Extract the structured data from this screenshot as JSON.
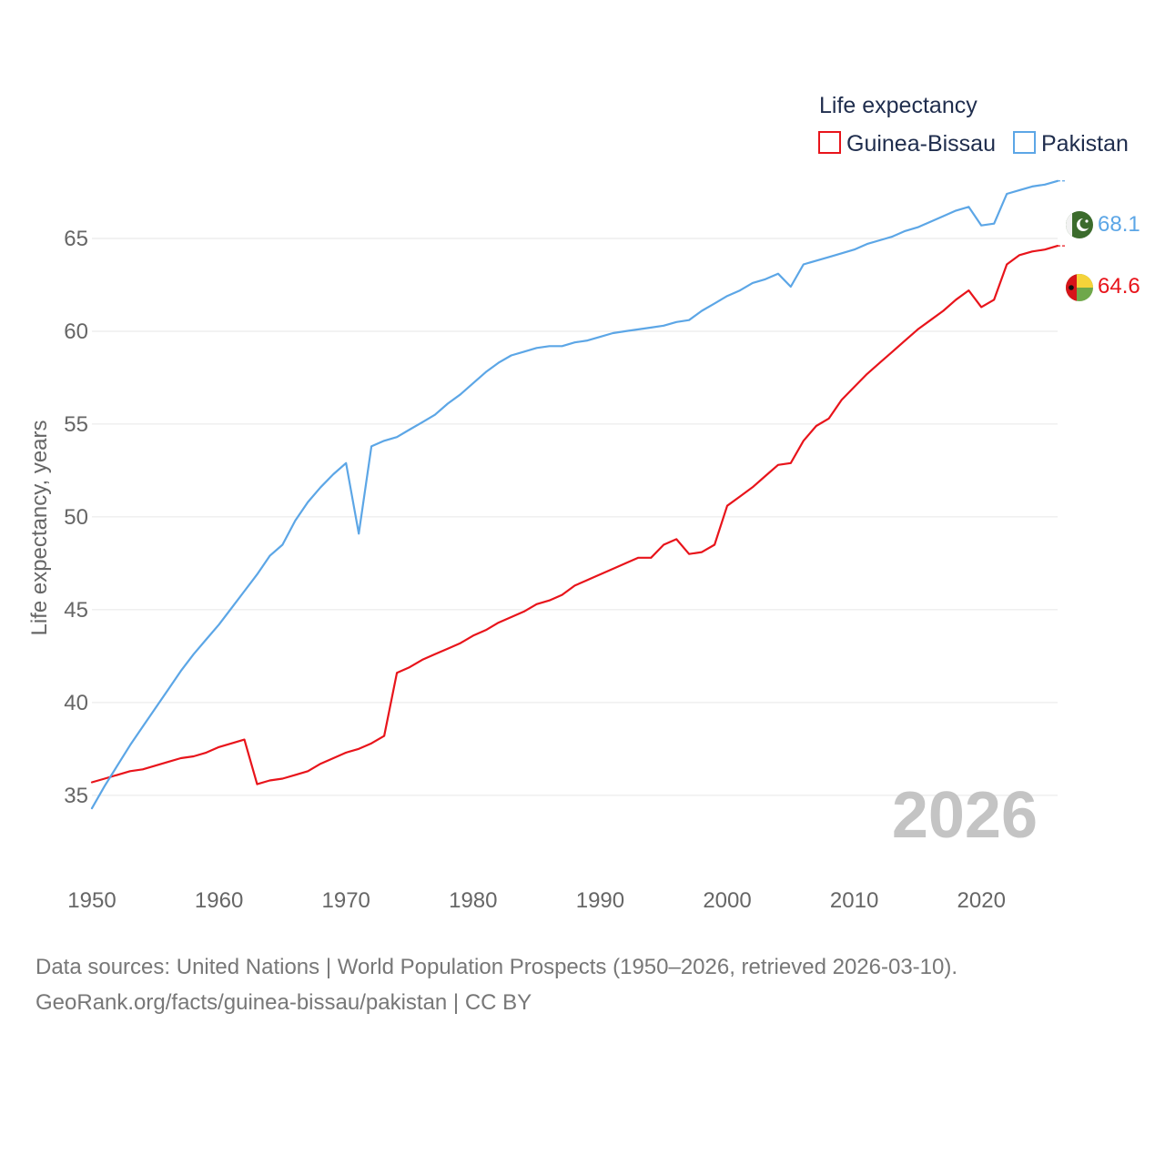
{
  "chart_data": {
    "type": "line",
    "legend_title": "Life expectancy",
    "ylabel": "Life expectancy, years",
    "xlim": [
      1950,
      2026
    ],
    "ylim": [
      32,
      70
    ],
    "yticks": [
      35,
      40,
      45,
      50,
      55,
      60,
      65
    ],
    "xticks": [
      1950,
      1960,
      1970,
      1980,
      1990,
      2000,
      2010,
      2020
    ],
    "year_label": "2026",
    "legend_position": "top-right",
    "series": [
      {
        "name": "Guinea-Bissau",
        "color": "#e8141b",
        "end_value": "64.6",
        "flag": "guinea-bissau-flag",
        "x": [
          1950,
          1951,
          1952,
          1953,
          1954,
          1955,
          1956,
          1957,
          1958,
          1959,
          1960,
          1961,
          1962,
          1963,
          1964,
          1965,
          1966,
          1967,
          1968,
          1969,
          1970,
          1971,
          1972,
          1973,
          1974,
          1975,
          1976,
          1977,
          1978,
          1979,
          1980,
          1981,
          1982,
          1983,
          1984,
          1985,
          1986,
          1987,
          1988,
          1989,
          1990,
          1991,
          1992,
          1993,
          1994,
          1995,
          1996,
          1997,
          1998,
          1999,
          2000,
          2001,
          2002,
          2003,
          2004,
          2005,
          2006,
          2007,
          2008,
          2009,
          2010,
          2011,
          2012,
          2013,
          2014,
          2015,
          2016,
          2017,
          2018,
          2019,
          2020,
          2021,
          2022,
          2023,
          2024,
          2025,
          2026
        ],
        "values": [
          35.7,
          35.9,
          36.1,
          36.3,
          36.4,
          36.6,
          36.8,
          37.0,
          37.1,
          37.3,
          37.6,
          37.8,
          38.0,
          35.6,
          35.8,
          35.9,
          36.1,
          36.3,
          36.7,
          37.0,
          37.3,
          37.5,
          37.8,
          38.2,
          41.6,
          41.9,
          42.3,
          42.6,
          42.9,
          43.2,
          43.6,
          43.9,
          44.3,
          44.6,
          44.9,
          45.3,
          45.5,
          45.8,
          46.3,
          46.6,
          46.9,
          47.2,
          47.5,
          47.8,
          47.8,
          48.5,
          48.8,
          48.0,
          48.1,
          48.5,
          50.6,
          51.1,
          51.6,
          52.2,
          52.8,
          52.9,
          54.1,
          54.9,
          55.3,
          56.3,
          57.0,
          57.7,
          58.3,
          58.9,
          59.5,
          60.1,
          60.6,
          61.1,
          61.7,
          62.2,
          61.3,
          61.7,
          63.6,
          64.1,
          64.3,
          64.4,
          64.6
        ]
      },
      {
        "name": "Pakistan",
        "color": "#5ca6e6",
        "end_value": "68.1",
        "flag": "pakistan-flag",
        "x": [
          1950,
          1951,
          1952,
          1953,
          1954,
          1955,
          1956,
          1957,
          1958,
          1959,
          1960,
          1961,
          1962,
          1963,
          1964,
          1965,
          1966,
          1967,
          1968,
          1969,
          1970,
          1971,
          1972,
          1973,
          1974,
          1975,
          1976,
          1977,
          1978,
          1979,
          1980,
          1981,
          1982,
          1983,
          1984,
          1985,
          1986,
          1987,
          1988,
          1989,
          1990,
          1991,
          1992,
          1993,
          1994,
          1995,
          1996,
          1997,
          1998,
          1999,
          2000,
          2001,
          2002,
          2003,
          2004,
          2005,
          2006,
          2007,
          2008,
          2009,
          2010,
          2011,
          2012,
          2013,
          2014,
          2015,
          2016,
          2017,
          2018,
          2019,
          2020,
          2021,
          2022,
          2023,
          2024,
          2025,
          2026
        ],
        "values": [
          34.3,
          35.5,
          36.6,
          37.7,
          38.7,
          39.7,
          40.7,
          41.7,
          42.6,
          43.4,
          44.2,
          45.1,
          46.0,
          46.9,
          47.9,
          48.5,
          49.8,
          50.8,
          51.6,
          52.3,
          52.9,
          49.1,
          53.8,
          54.1,
          54.3,
          54.7,
          55.1,
          55.5,
          56.1,
          56.6,
          57.2,
          57.8,
          58.3,
          58.7,
          58.9,
          59.1,
          59.2,
          59.2,
          59.4,
          59.5,
          59.7,
          59.9,
          60.0,
          60.1,
          60.2,
          60.3,
          60.5,
          60.6,
          61.1,
          61.5,
          61.9,
          62.2,
          62.6,
          62.8,
          63.1,
          62.4,
          63.6,
          63.8,
          64.0,
          64.2,
          64.4,
          64.7,
          64.9,
          65.1,
          65.4,
          65.6,
          65.9,
          66.2,
          66.5,
          66.7,
          65.7,
          65.8,
          67.4,
          67.6,
          67.8,
          67.9,
          68.1
        ]
      }
    ]
  },
  "source": {
    "line1": "Data sources: United Nations | World Population Prospects (1950–2026, retrieved 2026-03-10).",
    "line2": "GeoRank.org/facts/guinea-bissau/pakistan | CC BY"
  }
}
